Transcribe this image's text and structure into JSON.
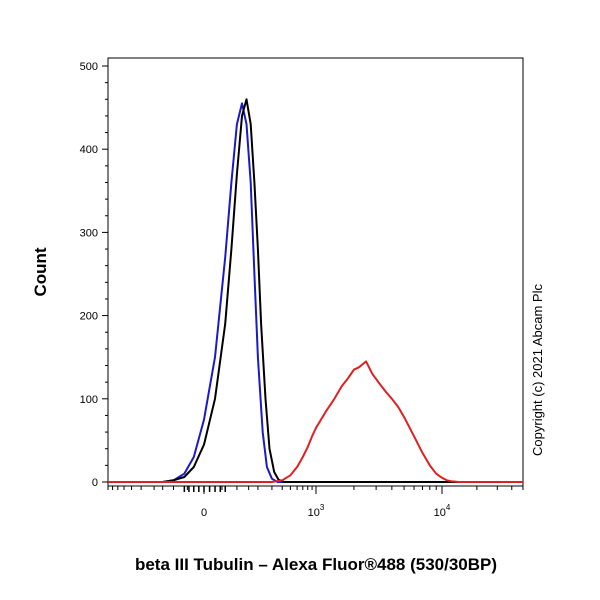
{
  "chart_data": {
    "type": "line",
    "xlabel": "beta III Tubulin – Alexa Fluor®488 (530/30BP)",
    "ylabel": "Count",
    "annotation": "Copyright (c) 2021 Abcam Plc",
    "x_scale": "biexponential",
    "x_ticks": [
      {
        "value": 0,
        "base": "0",
        "exp": ""
      },
      {
        "value": 1000,
        "base": "10",
        "exp": "3"
      },
      {
        "value": 10000,
        "base": "10",
        "exp": "4"
      }
    ],
    "ylim": [
      0,
      500
    ],
    "y_ticks": [
      0,
      100,
      200,
      300,
      400,
      500
    ],
    "grid": false,
    "series": [
      {
        "color": "#1a1acc",
        "x": [
          -150,
          -100,
          -60,
          -30,
          0,
          30,
          60,
          80,
          100,
          120,
          140,
          160,
          180,
          200,
          230,
          260,
          300,
          350
        ],
        "y": [
          0,
          2,
          10,
          30,
          75,
          150,
          270,
          360,
          430,
          455,
          430,
          360,
          250,
          150,
          60,
          18,
          4,
          0
        ]
      },
      {
        "color": "#000000",
        "x": [
          -150,
          -100,
          -60,
          -30,
          0,
          30,
          60,
          80,
          100,
          120,
          140,
          160,
          180,
          200,
          220,
          250,
          280,
          320,
          360,
          420
        ],
        "y": [
          0,
          2,
          6,
          18,
          45,
          100,
          190,
          280,
          370,
          440,
          460,
          430,
          360,
          280,
          190,
          100,
          40,
          12,
          3,
          0
        ]
      },
      {
        "color": "#e02020",
        "x": [
          300,
          400,
          500,
          600,
          700,
          800,
          900,
          1000,
          1200,
          1400,
          1600,
          1800,
          2000,
          2200,
          2500,
          2800,
          3200,
          3600,
          4000,
          4500,
          5000,
          5500,
          6000,
          7000,
          8000,
          9000,
          10000,
          11000,
          12000,
          14000,
          17000
        ],
        "y": [
          0,
          2,
          8,
          18,
          30,
          42,
          55,
          65,
          85,
          100,
          115,
          125,
          135,
          138,
          145,
          130,
          118,
          108,
          100,
          90,
          78,
          66,
          55,
          35,
          20,
          10,
          5,
          2,
          1,
          0,
          0
        ]
      }
    ]
  }
}
